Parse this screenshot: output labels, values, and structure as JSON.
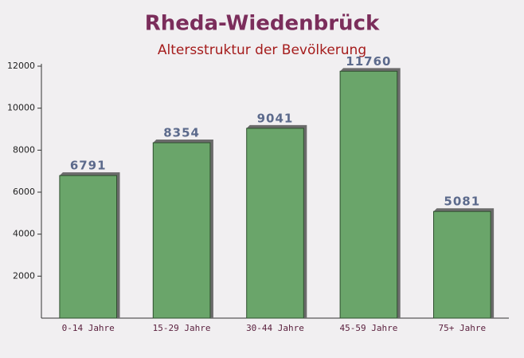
{
  "chart_data": {
    "type": "bar",
    "title": "Rheda-Wiedenbrück",
    "subtitle": "Altersstruktur der Bevölkerung",
    "categories": [
      "0-14 Jahre",
      "15-29 Jahre",
      "30-44 Jahre",
      "45-59 Jahre",
      "75+ Jahre"
    ],
    "values": [
      6791,
      8354,
      9041,
      11760,
      5081
    ],
    "color": "#6aa56a",
    "ylim": [
      0,
      12000
    ],
    "yticks": [
      2000,
      4000,
      6000,
      8000,
      10000,
      12000
    ],
    "grid": false
  }
}
